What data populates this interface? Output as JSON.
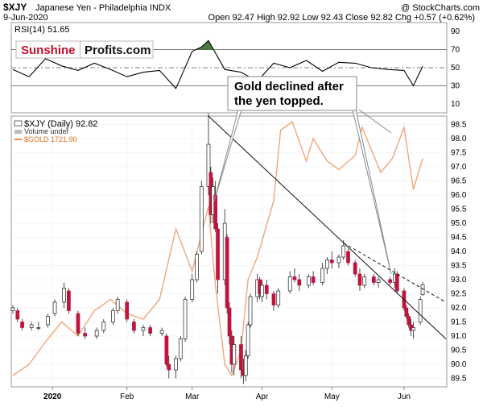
{
  "header": {
    "symbol": "$XJY",
    "name": "Japanese Yen - Philadelphia INDX",
    "source": "@ StockCharts.com",
    "date": "9-Jun-2020",
    "quote": "Open 92.47  High 92.92  Low 92.43  Close 92.82  Chg +0.57 (+0.62%)"
  },
  "brand": {
    "left": "Sunshine",
    "right": "Profits.com"
  },
  "annotation": "Gold declined after\nthe yen topped.",
  "colors": {
    "gold": "#f2a77a",
    "down": "#c0143c",
    "up": "#ffffff",
    "rsi_fill": "#4a7a3d"
  },
  "chart_data": [
    {
      "type": "line",
      "title": "RSI(14) 51.65",
      "ylim": [
        0,
        100
      ],
      "yticks": [
        10,
        30,
        50,
        70,
        90
      ],
      "reference_lines": [
        30,
        50,
        70
      ],
      "x": [
        "2019-12-16",
        "2019-12-23",
        "2019-12-30",
        "2020-01-06",
        "2020-01-13",
        "2020-01-20",
        "2020-01-27",
        "2020-02-03",
        "2020-02-10",
        "2020-02-17",
        "2020-02-24",
        "2020-03-02",
        "2020-03-06",
        "2020-03-09",
        "2020-03-16",
        "2020-03-23",
        "2020-03-30",
        "2020-04-06",
        "2020-04-13",
        "2020-04-20",
        "2020-04-27",
        "2020-05-04",
        "2020-05-11",
        "2020-05-18",
        "2020-05-25",
        "2020-06-01",
        "2020-06-05",
        "2020-06-09"
      ],
      "values": [
        48,
        40,
        60,
        52,
        47,
        55,
        48,
        40,
        45,
        47,
        27,
        68,
        73,
        80,
        48,
        45,
        35,
        55,
        50,
        58,
        46,
        56,
        55,
        50,
        48,
        47,
        30,
        51.65
      ]
    },
    {
      "type": "candlestick",
      "title": "$XJY (Daily) 92.82",
      "ylim": [
        89.2,
        98.8
      ],
      "yticks": [
        89.5,
        90.0,
        90.5,
        91.0,
        91.5,
        92.0,
        92.5,
        93.0,
        93.5,
        94.0,
        94.5,
        95.0,
        95.5,
        96.0,
        96.5,
        97.0,
        97.5,
        98.0,
        98.5
      ],
      "xticks": [
        "2020",
        "Feb",
        "Mar",
        "Apr",
        "May",
        "Jun"
      ],
      "legend": [
        "$XJY (Daily) 92.82",
        "Volume undef",
        "$GOLD 1721.90"
      ],
      "candles": [
        {
          "d": "2019-12-16",
          "o": 91.9,
          "h": 92.1,
          "l": 91.8,
          "c": 92.0
        },
        {
          "d": "2019-12-18",
          "o": 91.9,
          "h": 92.0,
          "l": 91.5,
          "c": 91.6
        },
        {
          "d": "2019-12-20",
          "o": 91.5,
          "h": 91.6,
          "l": 91.2,
          "c": 91.3
        },
        {
          "d": "2019-12-24",
          "o": 91.3,
          "h": 91.5,
          "l": 91.2,
          "c": 91.4
        },
        {
          "d": "2019-12-27",
          "o": 91.3,
          "h": 91.5,
          "l": 91.2,
          "c": 91.3
        },
        {
          "d": "2019-12-31",
          "o": 91.4,
          "h": 91.8,
          "l": 91.3,
          "c": 91.7
        },
        {
          "d": "2020-01-03",
          "o": 91.8,
          "h": 92.3,
          "l": 91.7,
          "c": 92.2
        },
        {
          "d": "2020-01-07",
          "o": 92.2,
          "h": 92.9,
          "l": 92.0,
          "c": 92.7
        },
        {
          "d": "2020-01-09",
          "o": 92.6,
          "h": 92.7,
          "l": 91.8,
          "c": 91.9
        },
        {
          "d": "2020-01-13",
          "o": 91.8,
          "h": 91.9,
          "l": 91.0,
          "c": 91.1
        },
        {
          "d": "2020-01-16",
          "o": 91.1,
          "h": 91.3,
          "l": 90.9,
          "c": 91.0
        },
        {
          "d": "2020-01-21",
          "o": 91.0,
          "h": 91.3,
          "l": 90.9,
          "c": 91.2
        },
        {
          "d": "2020-01-24",
          "o": 91.2,
          "h": 91.6,
          "l": 91.1,
          "c": 91.5
        },
        {
          "d": "2020-01-28",
          "o": 91.5,
          "h": 92.0,
          "l": 91.4,
          "c": 91.9
        },
        {
          "d": "2020-01-30",
          "o": 91.9,
          "h": 92.4,
          "l": 91.8,
          "c": 92.3
        },
        {
          "d": "2020-02-03",
          "o": 92.2,
          "h": 92.3,
          "l": 91.5,
          "c": 91.6
        },
        {
          "d": "2020-02-06",
          "o": 91.5,
          "h": 91.6,
          "l": 91.1,
          "c": 91.2
        },
        {
          "d": "2020-02-10",
          "o": 91.2,
          "h": 91.4,
          "l": 91.0,
          "c": 91.3
        },
        {
          "d": "2020-02-13",
          "o": 91.3,
          "h": 91.4,
          "l": 91.0,
          "c": 91.1
        },
        {
          "d": "2020-02-18",
          "o": 91.1,
          "h": 91.3,
          "l": 91.0,
          "c": 91.2
        },
        {
          "d": "2020-02-20",
          "o": 91.0,
          "h": 91.1,
          "l": 89.9,
          "c": 90.0
        },
        {
          "d": "2020-02-21",
          "o": 90.0,
          "h": 90.3,
          "l": 89.5,
          "c": 89.8
        },
        {
          "d": "2020-02-24",
          "o": 89.8,
          "h": 90.3,
          "l": 89.5,
          "c": 90.2
        },
        {
          "d": "2020-02-26",
          "o": 90.2,
          "h": 91.0,
          "l": 90.1,
          "c": 90.9
        },
        {
          "d": "2020-02-28",
          "o": 90.9,
          "h": 92.4,
          "l": 90.8,
          "c": 92.3
        },
        {
          "d": "2020-03-02",
          "o": 92.3,
          "h": 93.2,
          "l": 92.2,
          "c": 93.0
        },
        {
          "d": "2020-03-04",
          "o": 93.0,
          "h": 94.0,
          "l": 92.9,
          "c": 93.9
        },
        {
          "d": "2020-03-06",
          "o": 94.0,
          "h": 96.5,
          "l": 93.9,
          "c": 96.3
        },
        {
          "d": "2020-03-09",
          "o": 96.3,
          "h": 98.9,
          "l": 96.0,
          "c": 97.8
        },
        {
          "d": "2020-03-10",
          "o": 96.8,
          "h": 97.0,
          "l": 95.0,
          "c": 95.3
        },
        {
          "d": "2020-03-11",
          "o": 95.3,
          "h": 96.6,
          "l": 95.0,
          "c": 96.3
        },
        {
          "d": "2020-03-12",
          "o": 96.0,
          "h": 96.5,
          "l": 94.7,
          "c": 94.8
        },
        {
          "d": "2020-03-13",
          "o": 94.8,
          "h": 95.0,
          "l": 92.5,
          "c": 93.0
        },
        {
          "d": "2020-03-16",
          "o": 93.0,
          "h": 95.5,
          "l": 92.8,
          "c": 95.0
        },
        {
          "d": "2020-03-17",
          "o": 94.5,
          "h": 94.6,
          "l": 91.8,
          "c": 92.0
        },
        {
          "d": "2020-03-18",
          "o": 92.0,
          "h": 92.2,
          "l": 90.7,
          "c": 91.0
        },
        {
          "d": "2020-03-19",
          "o": 91.0,
          "h": 91.2,
          "l": 89.7,
          "c": 90.0
        },
        {
          "d": "2020-03-20",
          "o": 90.0,
          "h": 91.0,
          "l": 89.6,
          "c": 90.7
        },
        {
          "d": "2020-03-23",
          "o": 90.7,
          "h": 91.0,
          "l": 89.5,
          "c": 89.8
        },
        {
          "d": "2020-03-24",
          "o": 89.8,
          "h": 90.2,
          "l": 89.3,
          "c": 89.6
        },
        {
          "d": "2020-03-25",
          "o": 89.6,
          "h": 90.5,
          "l": 89.4,
          "c": 90.3
        },
        {
          "d": "2020-03-26",
          "o": 90.3,
          "h": 91.5,
          "l": 90.2,
          "c": 91.4
        },
        {
          "d": "2020-03-27",
          "o": 91.4,
          "h": 92.5,
          "l": 91.3,
          "c": 92.4
        },
        {
          "d": "2020-03-30",
          "o": 92.4,
          "h": 93.2,
          "l": 92.2,
          "c": 93.0
        },
        {
          "d": "2020-03-31",
          "o": 93.0,
          "h": 93.1,
          "l": 92.3,
          "c": 92.5
        },
        {
          "d": "2020-04-01",
          "o": 92.4,
          "h": 93.0,
          "l": 92.2,
          "c": 92.8
        },
        {
          "d": "2020-04-03",
          "o": 92.8,
          "h": 93.0,
          "l": 92.3,
          "c": 92.5
        },
        {
          "d": "2020-04-06",
          "o": 92.5,
          "h": 92.6,
          "l": 91.9,
          "c": 92.1
        },
        {
          "d": "2020-04-08",
          "o": 92.1,
          "h": 92.7,
          "l": 92.0,
          "c": 92.6
        },
        {
          "d": "2020-04-13",
          "o": 92.6,
          "h": 93.3,
          "l": 92.5,
          "c": 93.1
        },
        {
          "d": "2020-04-15",
          "o": 93.1,
          "h": 93.4,
          "l": 92.9,
          "c": 93.0
        },
        {
          "d": "2020-04-17",
          "o": 93.0,
          "h": 93.2,
          "l": 92.6,
          "c": 92.8
        },
        {
          "d": "2020-04-21",
          "o": 92.8,
          "h": 93.2,
          "l": 92.7,
          "c": 93.1
        },
        {
          "d": "2020-04-23",
          "o": 93.1,
          "h": 93.3,
          "l": 92.8,
          "c": 92.9
        },
        {
          "d": "2020-04-27",
          "o": 92.9,
          "h": 93.6,
          "l": 92.8,
          "c": 93.4
        },
        {
          "d": "2020-04-29",
          "o": 93.4,
          "h": 93.8,
          "l": 93.2,
          "c": 93.7
        },
        {
          "d": "2020-05-01",
          "o": 93.7,
          "h": 94.0,
          "l": 93.4,
          "c": 93.6
        },
        {
          "d": "2020-05-04",
          "o": 93.6,
          "h": 93.9,
          "l": 93.4,
          "c": 93.8
        },
        {
          "d": "2020-05-06",
          "o": 93.8,
          "h": 94.4,
          "l": 93.7,
          "c": 94.2
        },
        {
          "d": "2020-05-08",
          "o": 94.0,
          "h": 94.1,
          "l": 93.5,
          "c": 93.6
        },
        {
          "d": "2020-05-11",
          "o": 93.6,
          "h": 93.7,
          "l": 93.1,
          "c": 93.2
        },
        {
          "d": "2020-05-13",
          "o": 93.2,
          "h": 93.4,
          "l": 92.6,
          "c": 92.8
        },
        {
          "d": "2020-05-15",
          "o": 92.8,
          "h": 93.2,
          "l": 92.7,
          "c": 93.1
        },
        {
          "d": "2020-05-19",
          "o": 93.1,
          "h": 93.2,
          "l": 92.8,
          "c": 92.9
        },
        {
          "d": "2020-05-21",
          "o": 92.9,
          "h": 93.1,
          "l": 92.7,
          "c": 93.0
        },
        {
          "d": "2020-05-26",
          "o": 93.0,
          "h": 93.1,
          "l": 92.8,
          "c": 92.9
        },
        {
          "d": "2020-05-28",
          "o": 92.9,
          "h": 93.4,
          "l": 92.7,
          "c": 93.2
        },
        {
          "d": "2020-05-29",
          "o": 93.2,
          "h": 93.3,
          "l": 92.5,
          "c": 92.6
        },
        {
          "d": "2020-06-01",
          "o": 92.6,
          "h": 92.7,
          "l": 91.9,
          "c": 92.0
        },
        {
          "d": "2020-06-02",
          "o": 92.0,
          "h": 92.1,
          "l": 91.6,
          "c": 91.7
        },
        {
          "d": "2020-06-03",
          "o": 91.7,
          "h": 91.8,
          "l": 91.3,
          "c": 91.4
        },
        {
          "d": "2020-06-04",
          "o": 91.4,
          "h": 91.6,
          "l": 91.0,
          "c": 91.2
        },
        {
          "d": "2020-06-05",
          "o": 91.2,
          "h": 91.5,
          "l": 90.9,
          "c": 91.3
        },
        {
          "d": "2020-06-08",
          "o": 91.5,
          "h": 92.4,
          "l": 91.4,
          "c": 92.3
        },
        {
          "d": "2020-06-09",
          "o": 92.47,
          "h": 92.92,
          "l": 92.43,
          "c": 92.82
        }
      ],
      "gold_overlay": {
        "x": [
          "2019-12-16",
          "2019-12-23",
          "2019-12-30",
          "2020-01-06",
          "2020-01-13",
          "2020-01-20",
          "2020-01-27",
          "2020-02-03",
          "2020-02-10",
          "2020-02-17",
          "2020-02-24",
          "2020-03-02",
          "2020-03-09",
          "2020-03-12",
          "2020-03-16",
          "2020-03-19",
          "2020-03-23",
          "2020-03-26",
          "2020-03-30",
          "2020-04-06",
          "2020-04-09",
          "2020-04-14",
          "2020-04-20",
          "2020-04-23",
          "2020-04-29",
          "2020-05-04",
          "2020-05-11",
          "2020-05-14",
          "2020-05-18",
          "2020-05-22",
          "2020-05-27",
          "2020-06-01",
          "2020-06-05",
          "2020-06-09"
        ],
        "values": [
          89.6,
          90.0,
          90.8,
          91.5,
          91.0,
          91.9,
          92.3,
          91.8,
          91.6,
          92.3,
          94.8,
          93.3,
          95.6,
          92.8,
          90.0,
          89.6,
          90.5,
          93.0,
          93.8,
          95.8,
          98.3,
          98.6,
          97.2,
          98.0,
          97.2,
          96.9,
          97.4,
          98.4,
          97.6,
          96.8,
          97.3,
          98.4,
          96.2,
          97.3
        ]
      },
      "trendlines": [
        {
          "style": "solid",
          "from": [
            "2020-03-09",
            98.8
          ],
          "to": [
            "2020-06-19",
            90.9
          ]
        },
        {
          "style": "dashed",
          "from": [
            "2020-05-06",
            94.3
          ],
          "to": [
            "2020-06-19",
            92.2
          ]
        }
      ]
    }
  ]
}
